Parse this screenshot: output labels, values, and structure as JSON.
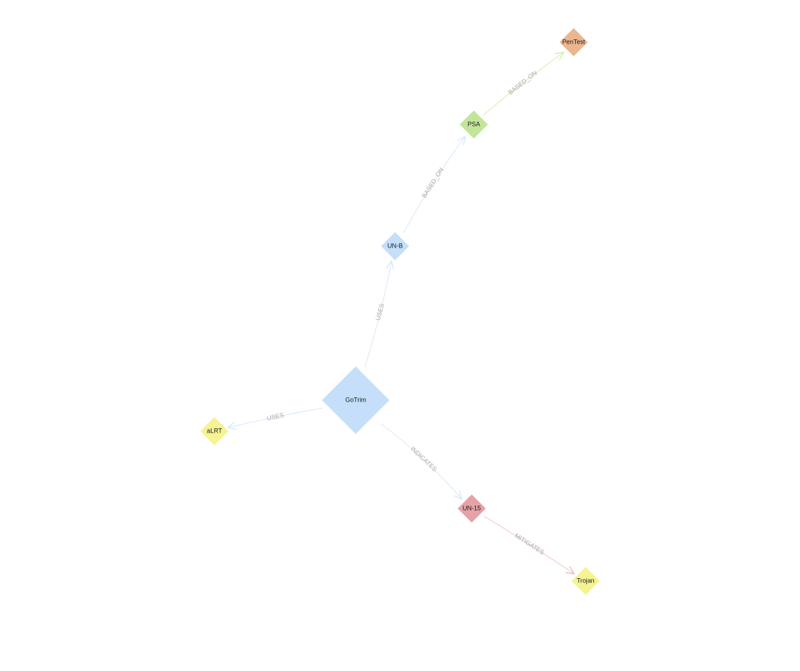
{
  "graph": {
    "nodes": [
      {
        "id": "gotrim",
        "label": "GoTrim",
        "color": "#c5dffa"
      },
      {
        "id": "unb",
        "label": "UN-B",
        "color": "#c5dffa"
      },
      {
        "id": "psa",
        "label": "PSA",
        "color": "#c3e59a"
      },
      {
        "id": "pentest",
        "label": "PenTest",
        "color": "#ebb68e"
      },
      {
        "id": "alrt",
        "label": "aLRT",
        "color": "#f5f392"
      },
      {
        "id": "un15",
        "label": "UN-15",
        "color": "#e6a2a6"
      },
      {
        "id": "trojan",
        "label": "Trojan",
        "color": "#f5f392"
      }
    ],
    "edges": [
      {
        "id": "e1",
        "source": "gotrim",
        "target": "unb",
        "label": "USES",
        "color": "#d6e8fb"
      },
      {
        "id": "e2",
        "source": "unb",
        "target": "psa",
        "label": "BASED_ON",
        "color": "#d6e8fb"
      },
      {
        "id": "e3",
        "source": "psa",
        "target": "pentest",
        "label": "BASED_ON",
        "color": "#d3ecb4"
      },
      {
        "id": "e4",
        "source": "gotrim",
        "target": "alrt",
        "label": "USES",
        "color": "#d6e8fb"
      },
      {
        "id": "e5",
        "source": "gotrim",
        "target": "un15",
        "label": "INDICATES",
        "color": "#d6e8fb"
      },
      {
        "id": "e6",
        "source": "un15",
        "target": "trojan",
        "label": "MITIGATES",
        "color": "#eebfc2"
      }
    ]
  }
}
